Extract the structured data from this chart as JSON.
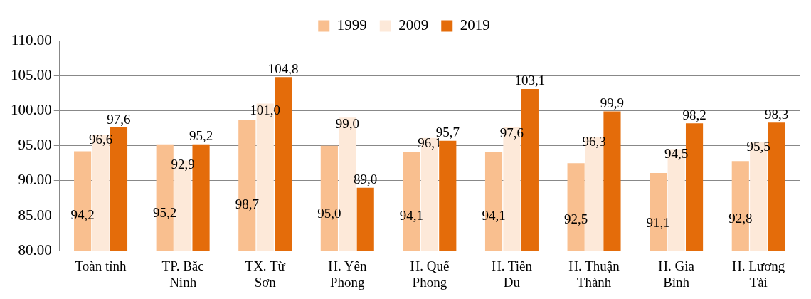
{
  "chart_data": {
    "type": "bar",
    "categories": [
      "Toàn tỉnh",
      "TP. Bắc Ninh",
      "TX. Từ Sơn",
      "H. Yên Phong",
      "H. Quế Phong",
      "H. Tiên Du",
      "H. Thuận Thành",
      "H. Gia Bình",
      "H. Lương Tài"
    ],
    "series": [
      {
        "name": "1999",
        "color": "#f9bf8f",
        "values": [
          94.2,
          95.2,
          98.7,
          95.0,
          94.1,
          94.1,
          92.5,
          91.1,
          92.8
        ],
        "value_labels": [
          "94,2",
          "95,2",
          "98,7",
          "95,0",
          "94,1",
          "94,1",
          "92,5",
          "91,1",
          "92,8"
        ]
      },
      {
        "name": "2009",
        "color": "#fde9d9",
        "values": [
          96.6,
          92.9,
          101.0,
          99.0,
          96.1,
          97.6,
          96.3,
          94.5,
          95.5
        ],
        "value_labels": [
          "96,6",
          "92,9",
          "101,0",
          "99,0",
          "96,1",
          "97,6",
          "96,3",
          "94,5",
          "95,5"
        ]
      },
      {
        "name": "2019",
        "color": "#e46c0a",
        "values": [
          97.6,
          95.2,
          104.8,
          89.0,
          95.7,
          103.1,
          99.9,
          98.2,
          98.3
        ],
        "value_labels": [
          "97,6",
          "95,2",
          "104,8",
          "89,0",
          "95,7",
          "103,1",
          "99,9",
          "98,2",
          "98,3"
        ]
      }
    ],
    "ylim": [
      80,
      110
    ],
    "yticks": [
      {
        "value": 80,
        "label": "80.00"
      },
      {
        "value": 85,
        "label": "85.00"
      },
      {
        "value": 90,
        "label": "90.00"
      },
      {
        "value": 95,
        "label": "95.00"
      },
      {
        "value": 100,
        "label": "100.00"
      },
      {
        "value": 105,
        "label": "105.00"
      },
      {
        "value": 110,
        "label": "110.00"
      }
    ],
    "grid": "y",
    "legend": "top"
  }
}
